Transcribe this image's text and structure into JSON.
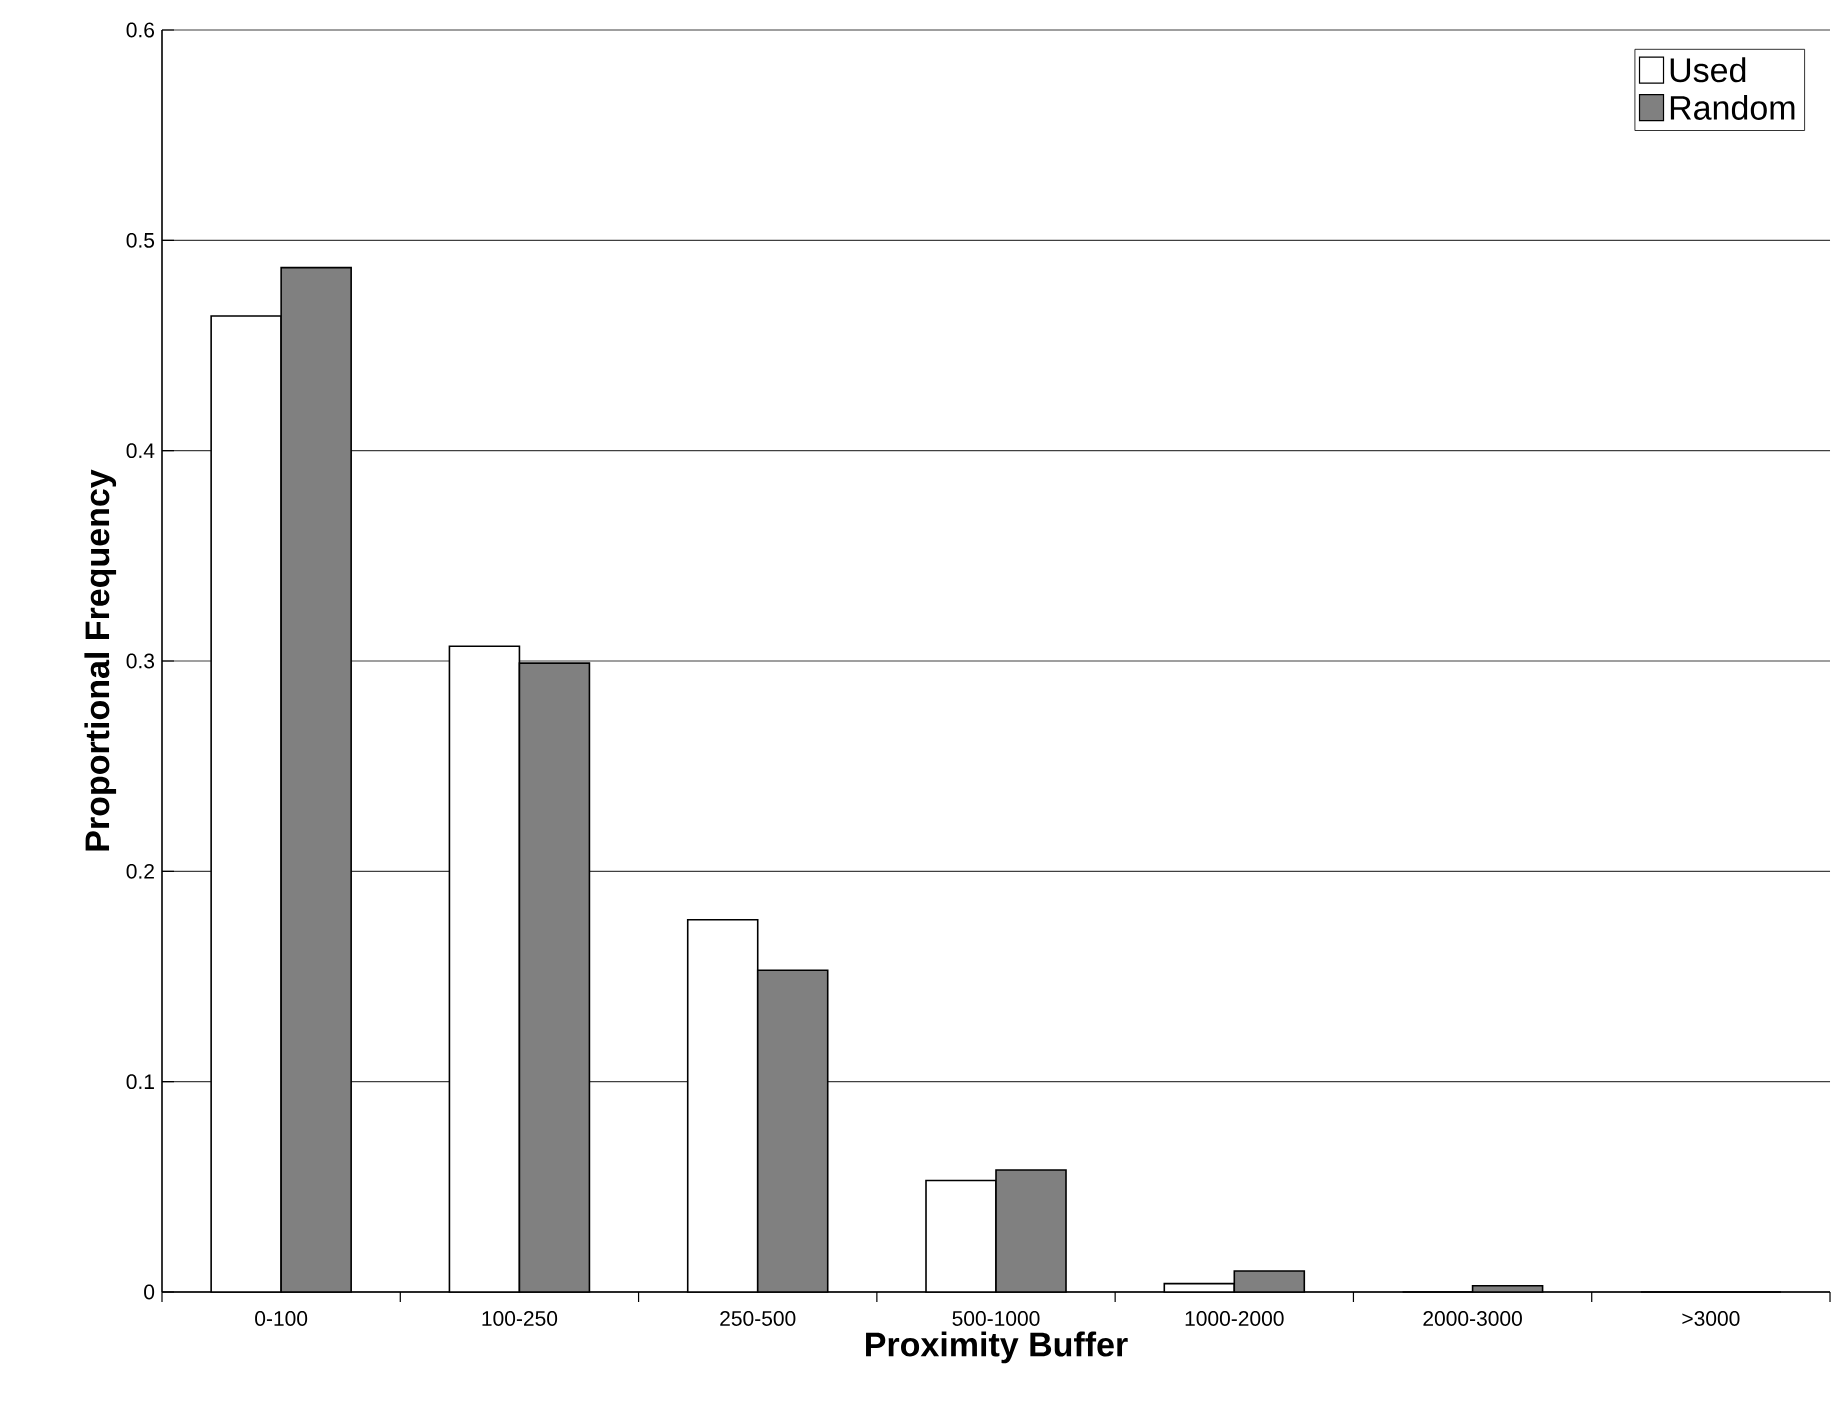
{
  "chart_data": {
    "type": "bar",
    "xlabel": "Proximity Buffer",
    "ylabel": "Proportional Frequency",
    "categories": [
      "0-100",
      "100-250",
      "250-500",
      "500-1000",
      "1000-2000",
      "2000-3000",
      ">3000"
    ],
    "series": [
      {
        "name": "Used",
        "color": "#ffffff",
        "values": [
          0.464,
          0.307,
          0.177,
          0.053,
          0.004,
          0,
          0
        ]
      },
      {
        "name": "Random",
        "color": "#808080",
        "values": [
          0.487,
          0.299,
          0.153,
          0.058,
          0.01,
          0.003,
          0
        ]
      }
    ],
    "ylim": [
      0,
      0.6
    ],
    "yticks": [
      0,
      0.1,
      0.2,
      0.3,
      0.4,
      0.5,
      0.6
    ],
    "grid": "y",
    "legend": "top right"
  }
}
